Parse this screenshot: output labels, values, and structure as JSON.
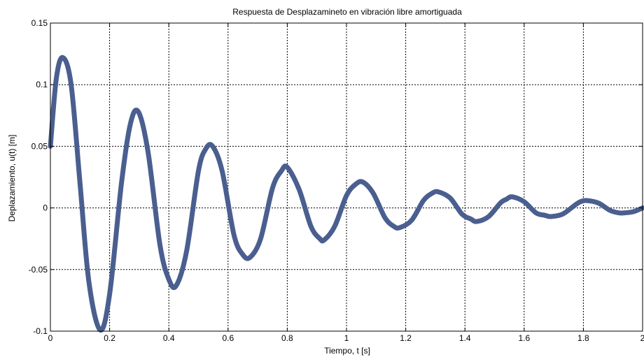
{
  "chart_data": {
    "type": "line",
    "title": "Respuesta de Desplazamineto en vibración libre amortiguada",
    "xlabel": "Tiempo, t [s]",
    "ylabel": "Deplazamiento, u(t) [m]",
    "xlim": [
      0,
      2
    ],
    "ylim": [
      -0.1,
      0.15
    ],
    "xticks": [
      0,
      0.2,
      0.4,
      0.6,
      0.8,
      1,
      1.2,
      1.4,
      1.6,
      1.8,
      2
    ],
    "xtick_labels": [
      "0",
      "0.2",
      "0.4",
      "0.6",
      "0.8",
      "1",
      "1.2",
      "1.4",
      "1.6",
      "1.8",
      "2"
    ],
    "yticks": [
      -0.1,
      -0.05,
      0,
      0.05,
      0.1,
      0.15
    ],
    "ytick_labels": [
      "-0.1",
      "-0.05",
      "0",
      "0.05",
      "0.1",
      "0.15"
    ],
    "grid": true,
    "line_color": "#4a5f8f",
    "series": [
      {
        "x": [
          0,
          0.02,
          0.042,
          0.07,
          0.1,
          0.13,
          0.168,
          0.2,
          0.24,
          0.27,
          0.297,
          0.33,
          0.37,
          0.4,
          0.425,
          0.46,
          0.5,
          0.525,
          0.548,
          0.58,
          0.62,
          0.65,
          0.675,
          0.71,
          0.75,
          0.78,
          0.8,
          0.84,
          0.88,
          0.91,
          0.925,
          0.96,
          1.0,
          1.03,
          1.055,
          1.09,
          1.13,
          1.16,
          1.18,
          1.22,
          1.26,
          1.29,
          1.31,
          1.35,
          1.39,
          1.42,
          1.44,
          1.48,
          1.52,
          1.54,
          1.56,
          1.6,
          1.64,
          1.67,
          1.69,
          1.73,
          1.77,
          1.79,
          1.81,
          1.85,
          1.89,
          1.92,
          1.94,
          1.97,
          2.0
        ],
        "y": [
          0.05,
          0.105,
          0.122,
          0.1,
          0.02,
          -0.06,
          -0.099,
          -0.07,
          0.02,
          0.068,
          0.078,
          0.045,
          -0.03,
          -0.058,
          -0.063,
          -0.035,
          0.03,
          0.048,
          0.05,
          0.03,
          -0.022,
          -0.038,
          -0.04,
          -0.025,
          0.016,
          0.03,
          0.033,
          0.015,
          -0.015,
          -0.025,
          -0.026,
          -0.015,
          0.01,
          0.019,
          0.021,
          0.012,
          -0.008,
          -0.015,
          -0.016,
          -0.01,
          0.006,
          0.012,
          0.013,
          0.008,
          -0.005,
          -0.009,
          -0.011,
          -0.007,
          0.004,
          0.007,
          0.009,
          0.005,
          -0.004,
          -0.006,
          -0.007,
          -0.005,
          0.002,
          0.005,
          0.006,
          0.004,
          -0.002,
          -0.004,
          -0.004,
          -0.003,
          0.0
        ]
      }
    ]
  }
}
